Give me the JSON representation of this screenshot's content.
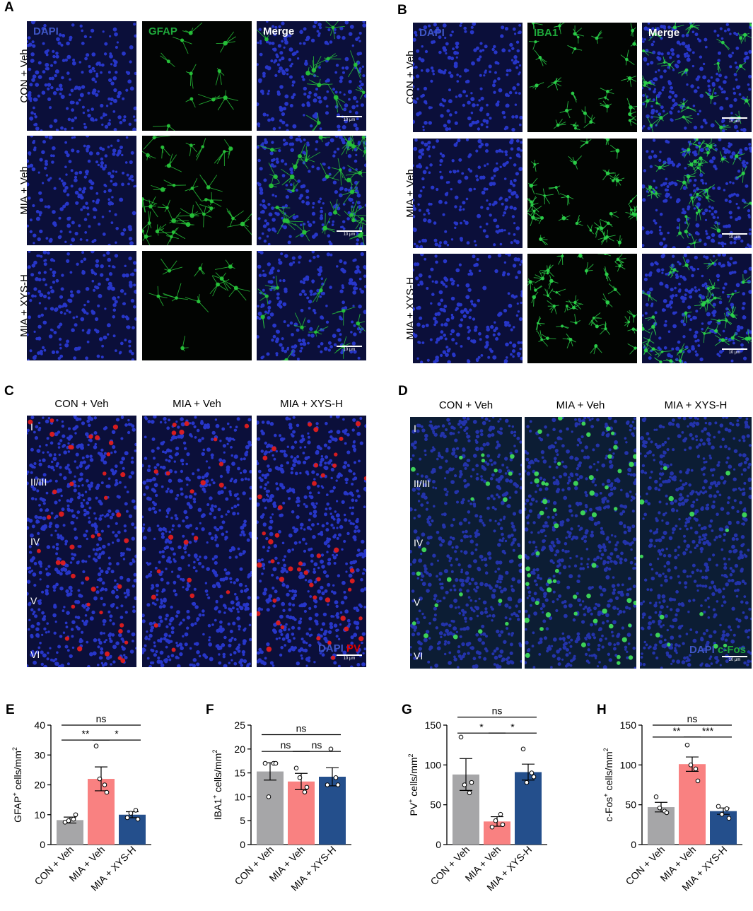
{
  "panels": {
    "A": {
      "label": "A",
      "channels": [
        "DAPI",
        "GFAP",
        "Merge"
      ],
      "rows": [
        "CON + Veh",
        "MIA + Veh",
        "MIA + XYS-H"
      ],
      "scale": "10 μm"
    },
    "B": {
      "label": "B",
      "channels": [
        "DAPI",
        "IBA1",
        "Merge"
      ],
      "rows": [
        "CON + Veh",
        "MIA + Veh",
        "MIA + XYS-H"
      ],
      "scale": "10 μm"
    },
    "C": {
      "label": "C",
      "columns": [
        "CON + Veh",
        "MIA + Veh",
        "MIA + XYS-H"
      ],
      "layers": [
        "I",
        "II/III",
        "IV",
        "V",
        "VI"
      ],
      "legend_dapi": "DAPI",
      "legend_marker": "PV",
      "scale": "10 μm"
    },
    "D": {
      "label": "D",
      "columns": [
        "CON + Veh",
        "MIA + Veh",
        "MIA + XYS-H"
      ],
      "layers": [
        "I",
        "II/III",
        "IV",
        "V",
        "VI"
      ],
      "legend_dapi": "DAPI",
      "legend_marker": "c-Fos",
      "scale": "10 μm"
    }
  },
  "colors": {
    "con": "#a6a6a8",
    "mia": "#f98181",
    "xys": "#244f8c",
    "dapi_text": "#3f56c7",
    "gfap_text": "#1ea83a",
    "pv_text": "#e00000",
    "cfos_text": "#1ea83a"
  },
  "chart_data": [
    {
      "panel": "E",
      "type": "bar",
      "categories": [
        "CON + Veh",
        "MIA + Veh",
        "MIA + XYS-H"
      ],
      "values": [
        8.2,
        22.0,
        10.0
      ],
      "errors": [
        1.0,
        4.0,
        1.0
      ],
      "points": [
        [
          7.5,
          8.5,
          8.0,
          10.0
        ],
        [
          33.0,
          20.0,
          22.0,
          17.5
        ],
        [
          9.0,
          11.5,
          10.5,
          8.5
        ]
      ],
      "ylabel_main": "GFAP",
      "ylabel_sup": "+",
      "ylabel_rest": " cells/mm",
      "ylabel_sup2": "2",
      "ylim": [
        0,
        40
      ],
      "yticks": [
        0,
        10,
        20,
        30,
        40
      ],
      "sig": [
        {
          "from": 0,
          "to": 1,
          "label": "**",
          "level": 35
        },
        {
          "from": 1,
          "to": 2,
          "label": "*",
          "level": 35
        },
        {
          "from": 0,
          "to": 2,
          "label": "ns",
          "level": 40
        }
      ]
    },
    {
      "panel": "F",
      "type": "bar",
      "categories": [
        "CON + Veh",
        "MIA + Veh",
        "MIA + XYS-H"
      ],
      "values": [
        15.3,
        13.2,
        14.2
      ],
      "errors": [
        1.8,
        1.7,
        1.9
      ],
      "points": [
        [
          17.0,
          17.0,
          10.0,
          17.0
        ],
        [
          16.0,
          11.0,
          14.0,
          12.0
        ],
        [
          12.5,
          14.0,
          20.0,
          12.5
        ]
      ],
      "ylabel_main": "IBA1",
      "ylabel_sup": "+",
      "ylabel_rest": " cells/mm",
      "ylabel_sup2": "2",
      "ylim": [
        0,
        25
      ],
      "yticks": [
        0,
        5,
        10,
        15,
        20,
        25
      ],
      "sig": [
        {
          "from": 0,
          "to": 1,
          "label": "ns",
          "level": 19.5
        },
        {
          "from": 1,
          "to": 2,
          "label": "ns",
          "level": 19.5
        },
        {
          "from": 0,
          "to": 2,
          "label": "ns",
          "level": 23
        }
      ]
    },
    {
      "panel": "G",
      "type": "bar",
      "categories": [
        "CON + Veh",
        "MIA + Veh",
        "MIA + XYS-H"
      ],
      "values": [
        88.0,
        29.0,
        91.0
      ],
      "errors": [
        20.0,
        6.0,
        10.0
      ],
      "points": [
        [
          135.0,
          65.0,
          75.0,
          78.0
        ],
        [
          22.0,
          38.0,
          30.0,
          25.0
        ],
        [
          120.0,
          90.0,
          78.0,
          85.0
        ]
      ],
      "ylabel_main": "PV",
      "ylabel_sup": "+",
      "ylabel_rest": " cells/mm",
      "ylabel_sup2": "2",
      "ylim": [
        0,
        150
      ],
      "yticks": [
        0,
        50,
        100,
        150
      ],
      "sig": [
        {
          "from": 0,
          "to": 1,
          "label": "*",
          "level": 140
        },
        {
          "from": 1,
          "to": 2,
          "label": "*",
          "level": 140
        },
        {
          "from": 0,
          "to": 2,
          "label": "ns",
          "level": 160
        }
      ]
    },
    {
      "panel": "H",
      "type": "bar",
      "categories": [
        "CON + Veh",
        "MIA + Veh",
        "MIA + XYS-H"
      ],
      "values": [
        47.0,
        101.0,
        42.0
      ],
      "errors": [
        6.0,
        9.0,
        4.0
      ],
      "points": [
        [
          60.0,
          42.0,
          46.0,
          40.0
        ],
        [
          125.0,
          95.0,
          100.0,
          80.0
        ],
        [
          48.0,
          45.0,
          38.0,
          33.0
        ]
      ],
      "ylabel_main": "c-Fos",
      "ylabel_sup": "+",
      "ylabel_rest": " cells/mm",
      "ylabel_sup2": "2",
      "ylim": [
        0,
        150
      ],
      "yticks": [
        0,
        50,
        100,
        150
      ],
      "sig": [
        {
          "from": 0,
          "to": 1,
          "label": "**",
          "level": 135
        },
        {
          "from": 1,
          "to": 2,
          "label": "***",
          "level": 135
        },
        {
          "from": 0,
          "to": 2,
          "label": "ns",
          "level": 150
        }
      ]
    }
  ]
}
